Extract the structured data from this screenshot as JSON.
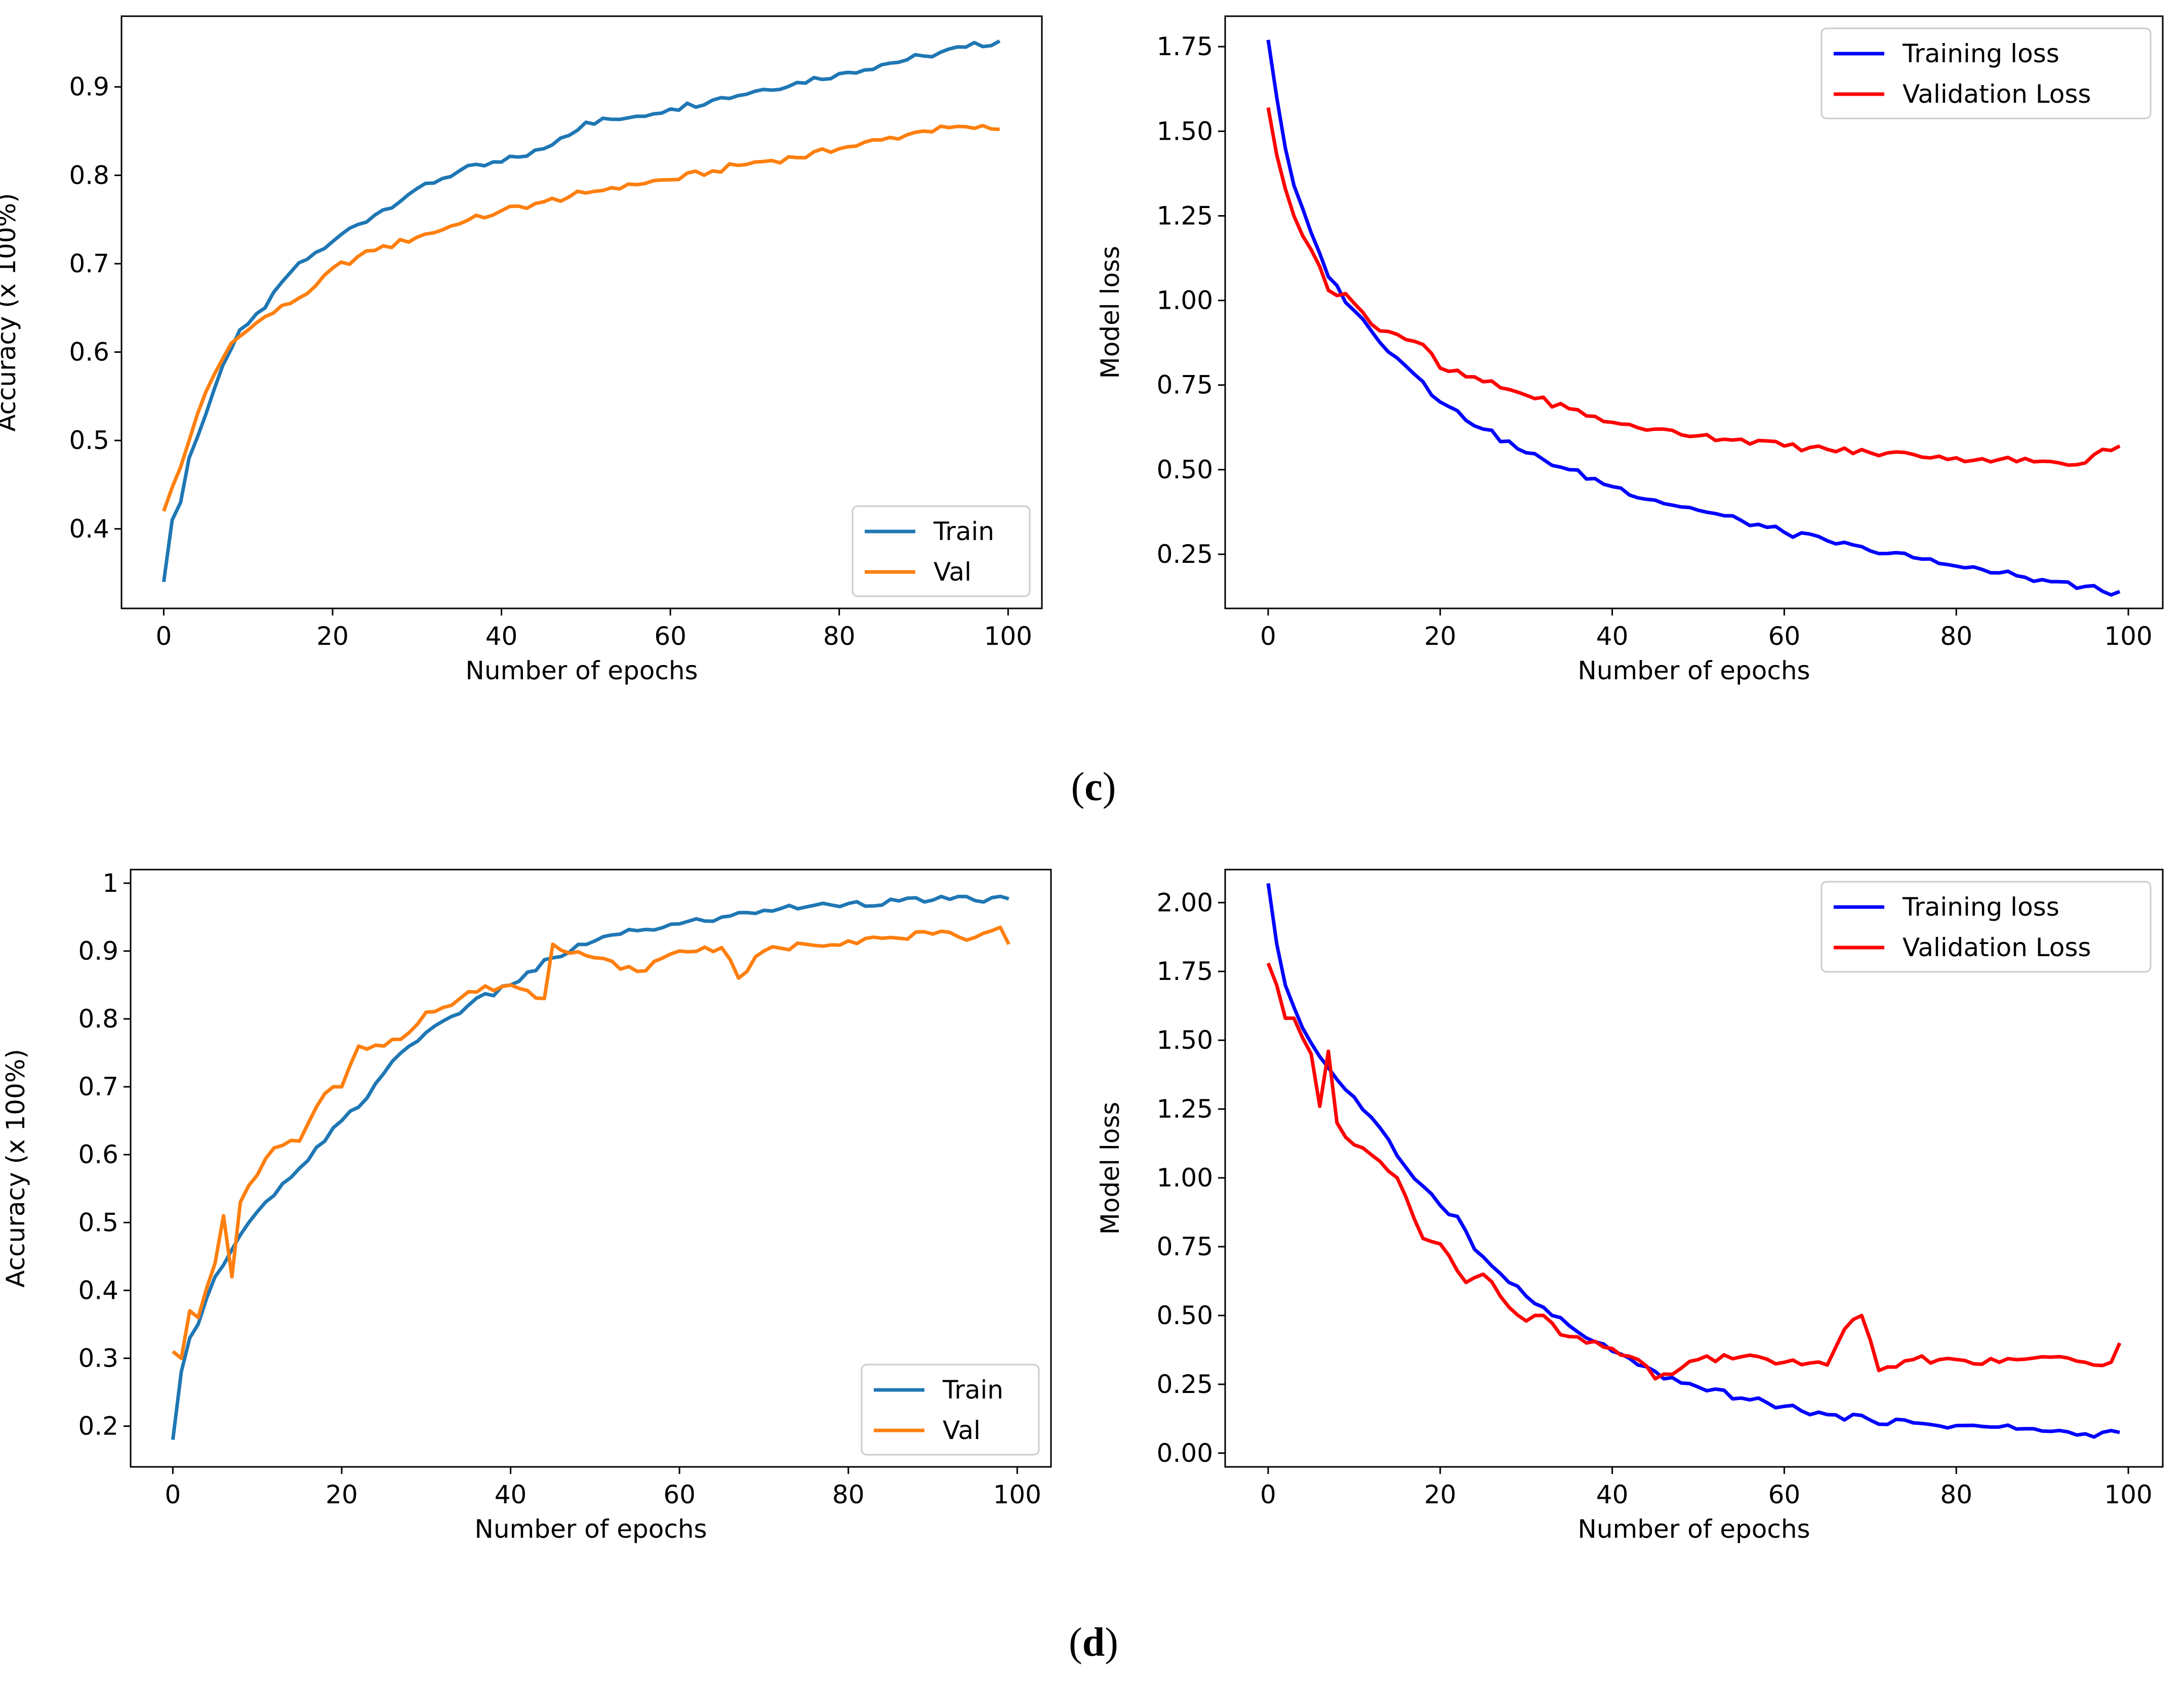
{
  "captions": {
    "c_label": "c",
    "d_label": "d"
  },
  "common": {
    "xlabel": "Number of epochs",
    "acc_ylabel": "Accuracy (x 100%)",
    "loss_ylabel": "Model loss"
  },
  "colors": {
    "train_acc": "#1f77b4",
    "val_acc": "#ff7f0e",
    "train_loss": "#0000ff",
    "val_loss": "#ff0000"
  },
  "chart_data": [
    {
      "id": "c-accuracy",
      "type": "line",
      "title": "",
      "xlabel": "Number of epochs",
      "ylabel": "Accuracy (x 100%)",
      "xlim": [
        -5,
        104
      ],
      "ylim": [
        0.31,
        0.98
      ],
      "xticks": [
        0,
        20,
        40,
        60,
        80,
        100
      ],
      "yticks": [
        0.4,
        0.5,
        0.6,
        0.7,
        0.8,
        0.9
      ],
      "legend": "bottom-right",
      "series": [
        {
          "name": "Train",
          "color": "#1f77b4",
          "anchors": [
            [
              0,
              0.34
            ],
            [
              1,
              0.41
            ],
            [
              2,
              0.43
            ],
            [
              3,
              0.48
            ],
            [
              5,
              0.53
            ],
            [
              7,
              0.585
            ],
            [
              9,
              0.625
            ],
            [
              10,
              0.632
            ],
            [
              12,
              0.65
            ],
            [
              15,
              0.69
            ],
            [
              17,
              0.705
            ],
            [
              20,
              0.725
            ],
            [
              22,
              0.74
            ],
            [
              25,
              0.755
            ],
            [
              30,
              0.785
            ],
            [
              35,
              0.805
            ],
            [
              40,
              0.815
            ],
            [
              45,
              0.83
            ],
            [
              50,
              0.86
            ],
            [
              55,
              0.865
            ],
            [
              60,
              0.875
            ],
            [
              65,
              0.885
            ],
            [
              70,
              0.895
            ],
            [
              75,
              0.905
            ],
            [
              80,
              0.915
            ],
            [
              85,
              0.925
            ],
            [
              90,
              0.935
            ],
            [
              95,
              0.945
            ],
            [
              99,
              0.952
            ]
          ]
        },
        {
          "name": "Val",
          "color": "#ff7f0e",
          "anchors": [
            [
              0,
              0.42
            ],
            [
              2,
              0.47
            ],
            [
              4,
              0.53
            ],
            [
              6,
              0.575
            ],
            [
              8,
              0.61
            ],
            [
              10,
              0.625
            ],
            [
              12,
              0.64
            ],
            [
              15,
              0.655
            ],
            [
              18,
              0.675
            ],
            [
              20,
              0.695
            ],
            [
              25,
              0.715
            ],
            [
              30,
              0.73
            ],
            [
              35,
              0.745
            ],
            [
              40,
              0.76
            ],
            [
              45,
              0.77
            ],
            [
              50,
              0.78
            ],
            [
              55,
              0.79
            ],
            [
              60,
              0.795
            ],
            [
              65,
              0.805
            ],
            [
              70,
              0.815
            ],
            [
              75,
              0.82
            ],
            [
              80,
              0.83
            ],
            [
              85,
              0.84
            ],
            [
              90,
              0.85
            ],
            [
              95,
              0.855
            ],
            [
              99,
              0.852
            ]
          ]
        }
      ]
    },
    {
      "id": "c-loss",
      "type": "line",
      "title": "",
      "xlabel": "Number of epochs",
      "ylabel": "Model loss",
      "xlim": [
        -5,
        104
      ],
      "ylim": [
        0.09,
        1.84
      ],
      "xticks": [
        0,
        20,
        40,
        60,
        80,
        100
      ],
      "yticks": [
        0.25,
        0.5,
        0.75,
        1.0,
        1.25,
        1.5,
        1.75
      ],
      "ytick_labels": [
        "0.25",
        "0.50",
        "0.75",
        "1.00",
        "1.25",
        "1.50",
        "1.75"
      ],
      "legend": "top-right",
      "series": [
        {
          "name": "Training loss",
          "color": "#0000ff",
          "anchors": [
            [
              0,
              1.77
            ],
            [
              1,
              1.6
            ],
            [
              2,
              1.45
            ],
            [
              3,
              1.34
            ],
            [
              5,
              1.2
            ],
            [
              7,
              1.07
            ],
            [
              10,
              0.97
            ],
            [
              12,
              0.91
            ],
            [
              15,
              0.83
            ],
            [
              18,
              0.76
            ],
            [
              20,
              0.7
            ],
            [
              25,
              0.62
            ],
            [
              30,
              0.55
            ],
            [
              35,
              0.5
            ],
            [
              40,
              0.45
            ],
            [
              45,
              0.41
            ],
            [
              50,
              0.38
            ],
            [
              55,
              0.35
            ],
            [
              60,
              0.315
            ],
            [
              65,
              0.29
            ],
            [
              70,
              0.26
            ],
            [
              75,
              0.24
            ],
            [
              80,
              0.215
            ],
            [
              85,
              0.195
            ],
            [
              90,
              0.175
            ],
            [
              95,
              0.155
            ],
            [
              98,
              0.13
            ],
            [
              99,
              0.14
            ]
          ]
        },
        {
          "name": "Validation Loss",
          "color": "#ff0000",
          "anchors": [
            [
              0,
              1.57
            ],
            [
              1,
              1.43
            ],
            [
              2,
              1.33
            ],
            [
              3,
              1.25
            ],
            [
              5,
              1.15
            ],
            [
              7,
              1.03
            ],
            [
              9,
              1.02
            ],
            [
              12,
              0.93
            ],
            [
              15,
              0.9
            ],
            [
              18,
              0.87
            ],
            [
              20,
              0.8
            ],
            [
              25,
              0.76
            ],
            [
              30,
              0.72
            ],
            [
              35,
              0.68
            ],
            [
              40,
              0.64
            ],
            [
              45,
              0.62
            ],
            [
              50,
              0.6
            ],
            [
              55,
              0.59
            ],
            [
              60,
              0.57
            ],
            [
              65,
              0.56
            ],
            [
              70,
              0.55
            ],
            [
              75,
              0.545
            ],
            [
              80,
              0.535
            ],
            [
              85,
              0.53
            ],
            [
              90,
              0.525
            ],
            [
              95,
              0.52
            ],
            [
              97,
              0.56
            ],
            [
              99,
              0.57
            ]
          ]
        }
      ]
    },
    {
      "id": "d-accuracy",
      "type": "line",
      "title": "",
      "xlabel": "Number of epochs",
      "ylabel": "Accuracy (x 100%)",
      "xlim": [
        -5,
        104
      ],
      "ylim": [
        0.14,
        1.02
      ],
      "xticks": [
        0,
        20,
        40,
        60,
        80,
        100
      ],
      "yticks": [
        0.2,
        0.3,
        0.4,
        0.5,
        0.6,
        0.7,
        0.8,
        0.9,
        1.0
      ],
      "legend": "bottom-right",
      "series": [
        {
          "name": "Train",
          "color": "#1f77b4",
          "anchors": [
            [
              0,
              0.18
            ],
            [
              1,
              0.28
            ],
            [
              2,
              0.33
            ],
            [
              3,
              0.35
            ],
            [
              5,
              0.42
            ],
            [
              7,
              0.46
            ],
            [
              9,
              0.5
            ],
            [
              12,
              0.54
            ],
            [
              15,
              0.58
            ],
            [
              18,
              0.62
            ],
            [
              20,
              0.65
            ],
            [
              22,
              0.67
            ],
            [
              25,
              0.72
            ],
            [
              28,
              0.76
            ],
            [
              30,
              0.78
            ],
            [
              35,
              0.82
            ],
            [
              40,
              0.85
            ],
            [
              45,
              0.89
            ],
            [
              50,
              0.915
            ],
            [
              55,
              0.93
            ],
            [
              60,
              0.94
            ],
            [
              65,
              0.95
            ],
            [
              70,
              0.96
            ],
            [
              75,
              0.965
            ],
            [
              80,
              0.97
            ],
            [
              90,
              0.975
            ],
            [
              99,
              0.977
            ]
          ]
        },
        {
          "name": "Val",
          "color": "#ff7f0e",
          "anchors": [
            [
              0,
              0.31
            ],
            [
              1,
              0.3
            ],
            [
              2,
              0.37
            ],
            [
              3,
              0.36
            ],
            [
              5,
              0.44
            ],
            [
              6,
              0.51
            ],
            [
              7,
              0.42
            ],
            [
              8,
              0.53
            ],
            [
              10,
              0.57
            ],
            [
              12,
              0.61
            ],
            [
              15,
              0.62
            ],
            [
              18,
              0.69
            ],
            [
              20,
              0.7
            ],
            [
              22,
              0.76
            ],
            [
              25,
              0.76
            ],
            [
              28,
              0.78
            ],
            [
              30,
              0.81
            ],
            [
              33,
              0.82
            ],
            [
              35,
              0.84
            ],
            [
              40,
              0.85
            ],
            [
              44,
              0.83
            ],
            [
              45,
              0.91
            ],
            [
              50,
              0.89
            ],
            [
              55,
              0.87
            ],
            [
              60,
              0.9
            ],
            [
              65,
              0.905
            ],
            [
              67,
              0.86
            ],
            [
              70,
              0.9
            ],
            [
              75,
              0.91
            ],
            [
              80,
              0.915
            ],
            [
              85,
              0.92
            ],
            [
              90,
              0.925
            ],
            [
              95,
              0.92
            ],
            [
              98,
              0.935
            ],
            [
              99,
              0.91
            ]
          ]
        }
      ]
    },
    {
      "id": "d-loss",
      "type": "line",
      "title": "",
      "xlabel": "Number of epochs",
      "ylabel": "Model loss",
      "xlim": [
        -5,
        104
      ],
      "ylim": [
        -0.05,
        2.12
      ],
      "xticks": [
        0,
        20,
        40,
        60,
        80,
        100
      ],
      "yticks": [
        0,
        0.25,
        0.5,
        0.75,
        1.0,
        1.25,
        1.5,
        1.75,
        2.0
      ],
      "ytick_labels": [
        "0.00",
        "0.25",
        "0.50",
        "0.75",
        "1.00",
        "1.25",
        "1.50",
        "1.75",
        "2.00"
      ],
      "legend": "top-right",
      "series": [
        {
          "name": "Training loss",
          "color": "#0000ff",
          "anchors": [
            [
              0,
              2.07
            ],
            [
              1,
              1.85
            ],
            [
              2,
              1.7
            ],
            [
              3,
              1.62
            ],
            [
              5,
              1.49
            ],
            [
              7,
              1.4
            ],
            [
              9,
              1.32
            ],
            [
              12,
              1.22
            ],
            [
              15,
              1.08
            ],
            [
              18,
              0.97
            ],
            [
              20,
              0.9
            ],
            [
              22,
              0.86
            ],
            [
              24,
              0.74
            ],
            [
              26,
              0.68
            ],
            [
              28,
              0.62
            ],
            [
              30,
              0.57
            ],
            [
              33,
              0.5
            ],
            [
              36,
              0.44
            ],
            [
              40,
              0.37
            ],
            [
              43,
              0.32
            ],
            [
              46,
              0.27
            ],
            [
              50,
              0.24
            ],
            [
              55,
              0.2
            ],
            [
              60,
              0.17
            ],
            [
              65,
              0.14
            ],
            [
              70,
              0.12
            ],
            [
              75,
              0.11
            ],
            [
              80,
              0.1
            ],
            [
              85,
              0.095
            ],
            [
              90,
              0.08
            ],
            [
              95,
              0.07
            ],
            [
              99,
              0.075
            ]
          ]
        },
        {
          "name": "Validation Loss",
          "color": "#ff0000",
          "anchors": [
            [
              0,
              1.78
            ],
            [
              1,
              1.7
            ],
            [
              2,
              1.58
            ],
            [
              3,
              1.58
            ],
            [
              5,
              1.45
            ],
            [
              6,
              1.26
            ],
            [
              7,
              1.46
            ],
            [
              8,
              1.2
            ],
            [
              10,
              1.12
            ],
            [
              13,
              1.06
            ],
            [
              15,
              1.0
            ],
            [
              17,
              0.85
            ],
            [
              18,
              0.78
            ],
            [
              20,
              0.76
            ],
            [
              23,
              0.62
            ],
            [
              25,
              0.65
            ],
            [
              27,
              0.57
            ],
            [
              30,
              0.48
            ],
            [
              32,
              0.5
            ],
            [
              34,
              0.43
            ],
            [
              37,
              0.4
            ],
            [
              40,
              0.38
            ],
            [
              43,
              0.34
            ],
            [
              45,
              0.27
            ],
            [
              50,
              0.34
            ],
            [
              55,
              0.35
            ],
            [
              60,
              0.33
            ],
            [
              65,
              0.32
            ],
            [
              67,
              0.45
            ],
            [
              69,
              0.5
            ],
            [
              71,
              0.3
            ],
            [
              75,
              0.34
            ],
            [
              80,
              0.34
            ],
            [
              85,
              0.33
            ],
            [
              90,
              0.35
            ],
            [
              95,
              0.33
            ],
            [
              98,
              0.33
            ],
            [
              99,
              0.4
            ]
          ]
        }
      ]
    }
  ]
}
